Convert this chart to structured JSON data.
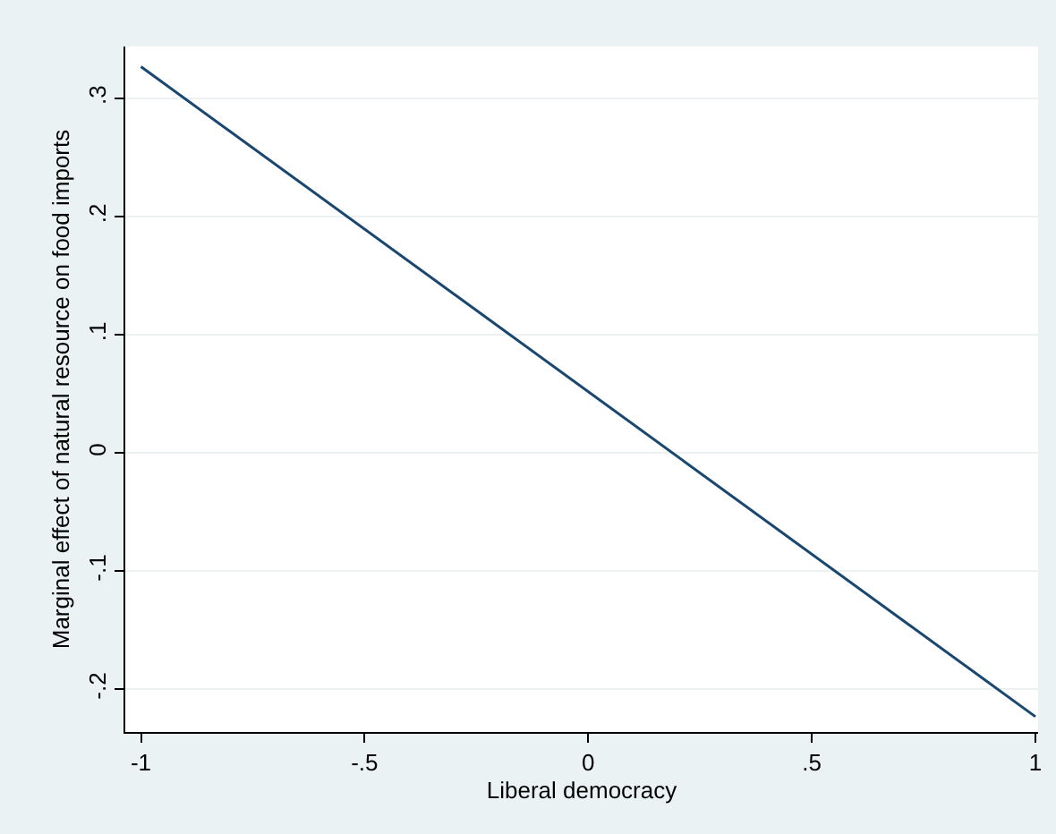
{
  "chart_data": {
    "type": "line",
    "xlabel": "Liberal democracy",
    "ylabel": "Marginal effect of natural resource on food imports",
    "x": [
      -1,
      1
    ],
    "series": [
      {
        "color": "#1a476f",
        "values": [
          0.327,
          -0.223
        ]
      }
    ],
    "xlim": [
      -1.035,
      1.006
    ],
    "ylim": [
      -0.236,
      0.344
    ],
    "xticks": [
      {
        "value": -1,
        "label": "-1"
      },
      {
        "value": -0.5,
        "label": "-.5"
      },
      0,
      {
        "value": 0.5,
        "label": ".5"
      },
      1
    ],
    "yticks": [
      {
        "value": -0.2,
        "label": "-.2"
      },
      {
        "value": -0.1,
        "label": "-.1"
      },
      0,
      {
        "value": 0.1,
        "label": ".1"
      },
      {
        "value": 0.2,
        "label": ".2"
      },
      {
        "value": 0.3,
        "label": ".3"
      }
    ],
    "grid": "y",
    "marker": "none",
    "line_style": "solid"
  }
}
